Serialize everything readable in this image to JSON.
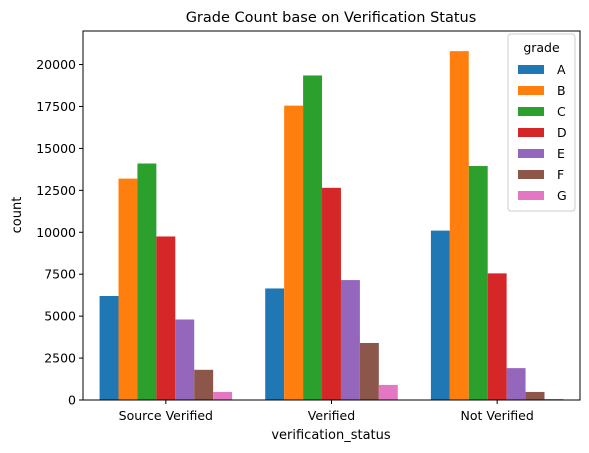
{
  "chart_data": {
    "type": "bar",
    "title": "Grade Count base on Verification Status",
    "xlabel": "verification_status",
    "ylabel": "count",
    "categories": [
      "Source Verified",
      "Verified",
      "Not Verified"
    ],
    "ylim": [
      0,
      22000
    ],
    "yticks": [
      0,
      2500,
      5000,
      7500,
      10000,
      12500,
      15000,
      17500,
      20000
    ],
    "grid": false,
    "legend": {
      "title": "grade",
      "placement": "top-right"
    },
    "series": [
      {
        "name": "A",
        "color": "#1f77b4",
        "values": [
          6200,
          6650,
          10100
        ]
      },
      {
        "name": "B",
        "color": "#ff7f0e",
        "values": [
          13200,
          17550,
          20800
        ]
      },
      {
        "name": "C",
        "color": "#2ca02c",
        "values": [
          14100,
          19350,
          13950
        ]
      },
      {
        "name": "D",
        "color": "#d62728",
        "values": [
          9750,
          12650,
          7550
        ]
      },
      {
        "name": "E",
        "color": "#9467bd",
        "values": [
          4800,
          7150,
          1900
        ]
      },
      {
        "name": "F",
        "color": "#8c564b",
        "values": [
          1800,
          3400,
          480
        ]
      },
      {
        "name": "G",
        "color": "#e377c2",
        "values": [
          480,
          900,
          60
        ]
      }
    ]
  }
}
